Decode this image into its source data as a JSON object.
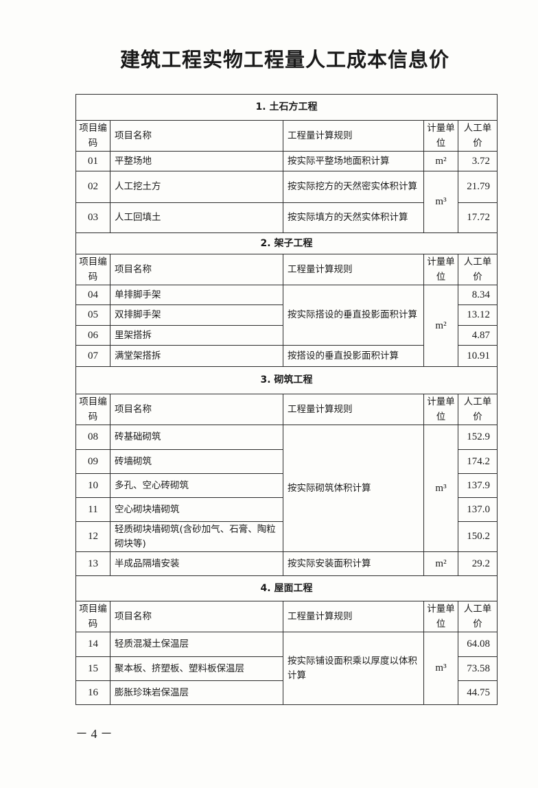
{
  "title": "建筑工程实物工程量人工成本信息价",
  "header": {
    "code": "项目编码",
    "name": "项目名称",
    "rule": "工程量计算规则",
    "unit": "计量单位",
    "price": "人工单价"
  },
  "sections": [
    {
      "title": "1. 土石方工程",
      "rows": [
        {
          "code": "01",
          "name": "平整场地",
          "rule": "按实际平整场地面积计算",
          "unit": "m²",
          "price": "3.72"
        },
        {
          "code": "02",
          "name": "人工挖土方",
          "rule": "按实际挖方的天然密实体积计算",
          "unit": "m³",
          "price": "21.79"
        },
        {
          "code": "03",
          "name": "人工回填土",
          "rule": "按实际填方的天然实体积计算",
          "unit": null,
          "price": "17.72"
        }
      ]
    },
    {
      "title": "2. 架子工程",
      "rows": [
        {
          "code": "04",
          "name": "单排脚手架",
          "rule": "按实际搭设的垂直投影面积计算",
          "unit": "m²",
          "price": "8.34"
        },
        {
          "code": "05",
          "name": "双排脚手架",
          "rule": null,
          "unit": null,
          "price": "13.12"
        },
        {
          "code": "06",
          "name": "里架搭拆",
          "rule": null,
          "unit": null,
          "price": "4.87"
        },
        {
          "code": "07",
          "name": "满堂架搭拆",
          "rule": "按搭设的垂直投影面积计算",
          "unit": null,
          "price": "10.91"
        }
      ]
    },
    {
      "title": "3. 砌筑工程",
      "rows": [
        {
          "code": "08",
          "name": "砖基础砌筑",
          "rule": "按实际砌筑体积计算",
          "unit": "m³",
          "price": "152.9"
        },
        {
          "code": "09",
          "name": "砖墙砌筑",
          "rule": null,
          "unit": null,
          "price": "174.2"
        },
        {
          "code": "10",
          "name": "多孔、空心砖砌筑",
          "rule": null,
          "unit": null,
          "price": "137.9"
        },
        {
          "code": "11",
          "name": "空心砌块墙砌筑",
          "rule": null,
          "unit": null,
          "price": "137.0"
        },
        {
          "code": "12",
          "name": "轻质砌块墙砌筑(含砂加气、石膏、陶粒砌块等)",
          "rule": null,
          "unit": null,
          "price": "150.2"
        },
        {
          "code": "13",
          "name": "半成品隔墙安装",
          "rule": "按实际安装面积计算",
          "unit": "m²",
          "price": "29.2"
        }
      ]
    },
    {
      "title": "4. 屋面工程",
      "rows": [
        {
          "code": "14",
          "name": "轻质混凝土保温层",
          "rule": "按实际铺设面积乘以厚度以体积计算",
          "unit": "m³",
          "price": "64.08"
        },
        {
          "code": "15",
          "name": "聚本板、挤塑板、塑料板保温层",
          "rule": null,
          "unit": null,
          "price": "73.58"
        },
        {
          "code": "16",
          "name": "膨胀珍珠岩保温层",
          "rule": null,
          "unit": null,
          "price": "44.75"
        }
      ]
    }
  ],
  "page_number": "－ 4 －"
}
